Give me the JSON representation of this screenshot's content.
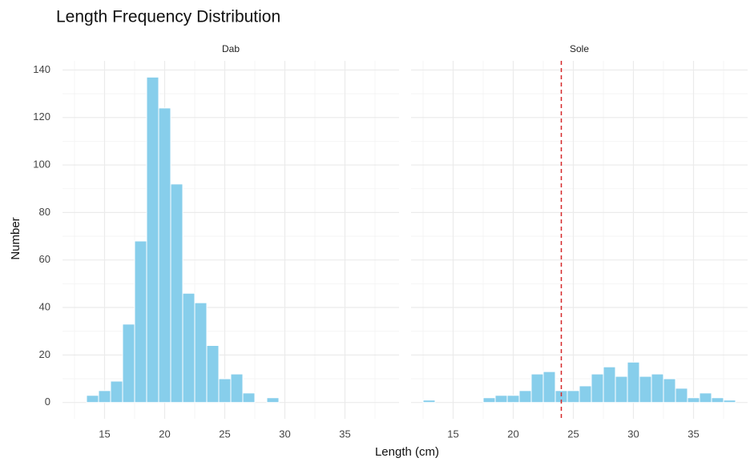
{
  "chart_data": {
    "type": "histogram",
    "title": "Length Frequency Distribution",
    "xlabel": "Length (cm)",
    "ylabel": "Number",
    "color": "#87ceeb",
    "grid": true,
    "xlim": [
      11.5,
      39.5
    ],
    "xticks": [
      15,
      20,
      25,
      30,
      35
    ],
    "xminor": [
      12.5,
      17.5,
      22.5,
      27.5,
      32.5,
      37.5
    ],
    "ylim": [
      -6.85,
      143.85
    ],
    "yticks": [
      0,
      20,
      40,
      60,
      80,
      100,
      120,
      140
    ],
    "yminor": [
      10,
      30,
      50,
      70,
      90,
      110,
      130
    ],
    "facets": [
      {
        "name": "Dab",
        "bins": [
          13.5,
          14.5,
          15.5,
          16.5,
          17.5,
          18.5,
          19.5,
          20.5,
          21.5,
          22.5,
          23.5,
          24.5,
          25.5,
          26.5,
          27.5,
          28.5,
          29.5
        ],
        "values": [
          3,
          5,
          9,
          33,
          68,
          137,
          124,
          92,
          46,
          42,
          24,
          10,
          12,
          4,
          0,
          2
        ]
      },
      {
        "name": "Sole",
        "bins": [
          12.5,
          13.5,
          14.5,
          15.5,
          16.5,
          17.5,
          18.5,
          19.5,
          20.5,
          21.5,
          22.5,
          23.5,
          24.5,
          25.5,
          26.5,
          27.5,
          28.5,
          29.5,
          30.5,
          31.5,
          32.5,
          33.5,
          34.5,
          35.5,
          36.5,
          37.5,
          38.5
        ],
        "values": [
          1,
          0,
          0,
          0,
          0,
          2,
          3,
          3,
          5,
          12,
          13,
          5,
          5,
          7,
          12,
          15,
          11,
          17,
          11,
          12,
          10,
          6,
          2,
          4,
          2,
          1
        ],
        "vline": {
          "value": 24,
          "color": "#d62728"
        }
      }
    ]
  }
}
